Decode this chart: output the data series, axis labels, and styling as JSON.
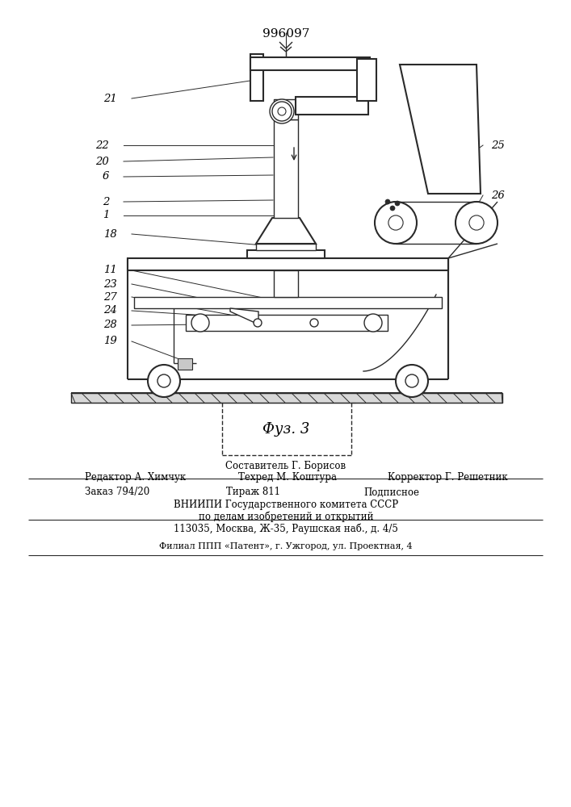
{
  "title": "996097",
  "fig_label": "Фуз. 3",
  "background_color": "#ffffff",
  "line_color": "#2a2a2a",
  "text_color": "#000000",
  "footer_line1": "Составитель Г. Борисов",
  "footer_line2a": "Редактор А. Химчук",
  "footer_line2b": "Техред М. Коштура",
  "footer_line2c": "Корректор Г. Решетник",
  "footer_line3a": "Заказ 794/20",
  "footer_line3b": "Тираж 811",
  "footer_line3c": "Подписное",
  "footer_line4": "ВНИИПИ Государственного комитета СССР",
  "footer_line5": "по делам изобретений и открытий",
  "footer_line6": "113035, Москва, Ж-35, Раушская наб., д. 4/5",
  "footer_line7": "Филиал ППП «Патент», г. Ужгород, ул. Проектная, 4"
}
